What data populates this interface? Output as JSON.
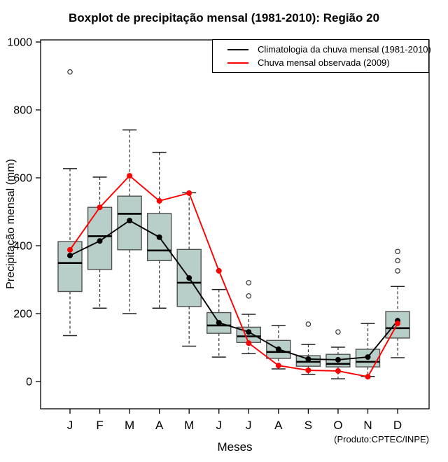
{
  "footer": {
    "product_note": "(Produto:CPTEC/INPE)"
  },
  "chart_data": {
    "type": "boxplot+line",
    "title": "Boxplot de precipitação mensal (1981-2010): Região 20",
    "xlabel": "Meses",
    "ylabel": "Precipitação mensal (mm)",
    "ylim": [
      0,
      1000
    ],
    "yticks": [
      0,
      200,
      400,
      600,
      800,
      1000
    ],
    "categories": [
      "J",
      "F",
      "M",
      "A",
      "M",
      "J",
      "J",
      "A",
      "S",
      "O",
      "N",
      "D"
    ],
    "grid": false,
    "legend_position": "top-right",
    "box_fill": "#b8cec8",
    "box_stroke": "#4f4f4f",
    "whisker_color": "#333333",
    "outlier_color": "#333333",
    "boxes": [
      {
        "month": "J",
        "whisker_low": 135,
        "q1": 265,
        "median": 349,
        "q3": 412,
        "whisker_high": 627,
        "outliers": [
          912
        ]
      },
      {
        "month": "F",
        "whisker_low": 216,
        "q1": 330,
        "median": 428,
        "q3": 513,
        "whisker_high": 602,
        "outliers": []
      },
      {
        "month": "M",
        "whisker_low": 200,
        "q1": 388,
        "median": 494,
        "q3": 546,
        "whisker_high": 741,
        "outliers": []
      },
      {
        "month": "A",
        "whisker_low": 216,
        "q1": 356,
        "median": 386,
        "q3": 495,
        "whisker_high": 675,
        "outliers": []
      },
      {
        "month": "M",
        "whisker_low": 104,
        "q1": 221,
        "median": 291,
        "q3": 389,
        "whisker_high": 556,
        "outliers": []
      },
      {
        "month": "J",
        "whisker_low": 72,
        "q1": 142,
        "median": 165,
        "q3": 203,
        "whisker_high": 271,
        "outliers": []
      },
      {
        "month": "J",
        "whisker_low": 82,
        "q1": 115,
        "median": 133,
        "q3": 160,
        "whisker_high": 198,
        "outliers": [
          252,
          291
        ]
      },
      {
        "month": "A",
        "whisker_low": 37,
        "q1": 68,
        "median": 87,
        "q3": 121,
        "whisker_high": 165,
        "outliers": []
      },
      {
        "month": "S",
        "whisker_low": 21,
        "q1": 45,
        "median": 58,
        "q3": 76,
        "whisker_high": 109,
        "outliers": [
          169
        ]
      },
      {
        "month": "O",
        "whisker_low": 8,
        "q1": 43,
        "median": 52,
        "q3": 80,
        "whisker_high": 101,
        "outliers": [
          146
        ]
      },
      {
        "month": "N",
        "whisker_low": 15,
        "q1": 43,
        "median": 58,
        "q3": 95,
        "whisker_high": 171,
        "outliers": []
      },
      {
        "month": "D",
        "whisker_low": 70,
        "q1": 128,
        "median": 157,
        "q3": 206,
        "whisker_high": 280,
        "outliers": [
          326,
          356,
          383
        ]
      }
    ],
    "series": [
      {
        "name": "Climatologia da chuva mensal (1981-2010)",
        "color": "#000000",
        "values": [
          371,
          414,
          474,
          425,
          305,
          173,
          146,
          95,
          66,
          64,
          72,
          179
        ]
      },
      {
        "name": "Chuva mensal observada (2009)",
        "color": "#ff0000",
        "values": [
          388,
          513,
          606,
          532,
          555,
          326,
          113,
          47,
          33,
          31,
          14,
          171
        ]
      }
    ]
  }
}
